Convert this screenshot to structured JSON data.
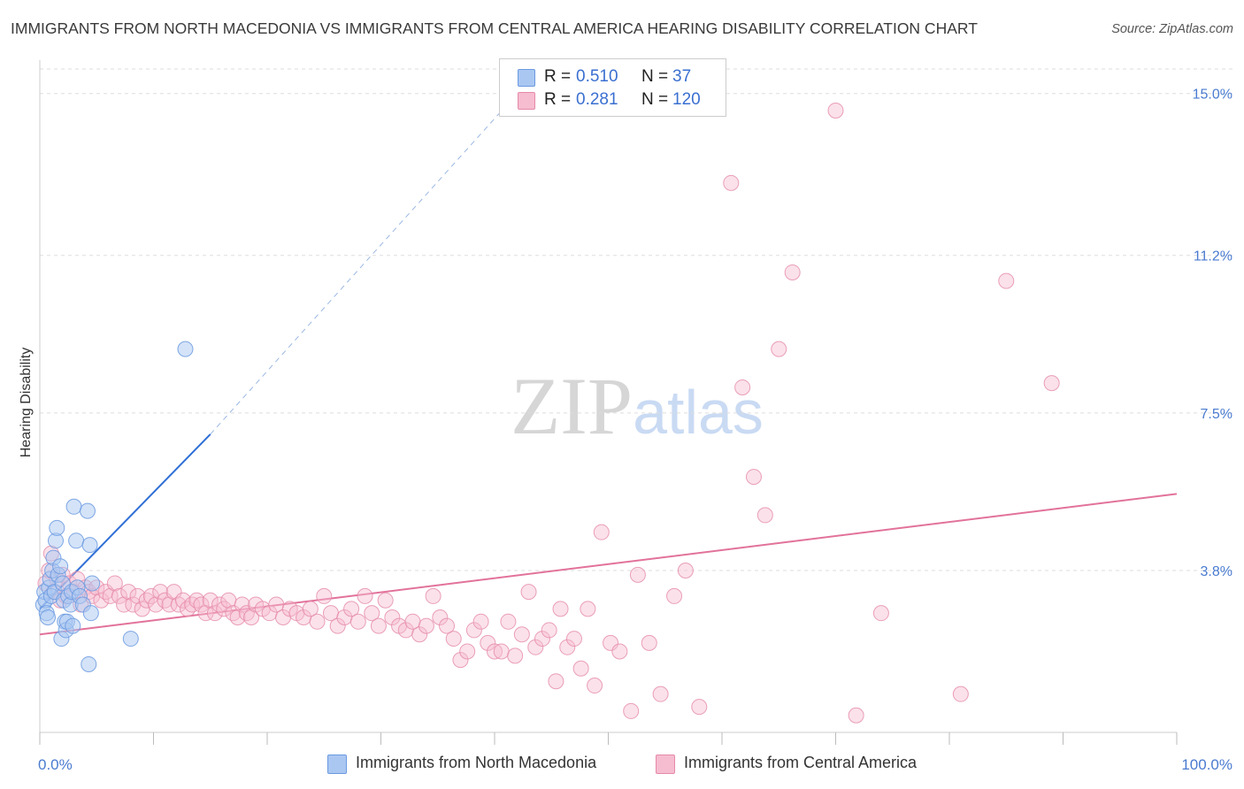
{
  "title": "IMMIGRANTS FROM NORTH MACEDONIA VS IMMIGRANTS FROM CENTRAL AMERICA HEARING DISABILITY CORRELATION CHART",
  "source": "Source: ZipAtlas.com",
  "watermark": "ZIPatlas",
  "colors": {
    "blue_fill": "#aac7f2",
    "blue_stroke": "#6b9ae0",
    "blue_line": "#2f6fd6",
    "pink_fill": "#f6bcd0",
    "pink_stroke": "#e58aa9",
    "pink_line": "#e2729a",
    "axis_text": "#4a7bd0",
    "grid": "#dddddd"
  },
  "legend": {
    "rows": [
      {
        "r_label": "R =",
        "r_value": "0.510",
        "n_label": "N =",
        "n_value": "37"
      },
      {
        "r_label": "R =",
        "r_value": "0.281",
        "n_label": "N =",
        "n_value": "120"
      }
    ]
  },
  "bottom_legend": {
    "series1": "Immigrants from North Macedonia",
    "series2": "Immigrants from Central America"
  },
  "chart_data": {
    "type": "scatter",
    "title": "IMMIGRANTS FROM NORTH MACEDONIA VS IMMIGRANTS FROM CENTRAL AMERICA HEARING DISABILITY CORRELATION CHART",
    "xlabel": "",
    "ylabel": "Hearing Disability",
    "xlim": [
      0,
      100
    ],
    "ylim": [
      0,
      15.7
    ],
    "x_tick_labels": [
      "0.0%",
      "100.0%"
    ],
    "y_ticks": [
      3.8,
      7.5,
      11.2,
      15.0
    ],
    "y_tick_labels": [
      "3.8%",
      "7.5%",
      "11.2%",
      "15.0%"
    ],
    "grid": true,
    "legend_position": "top-center",
    "series": [
      {
        "name": "Immigrants from North Macedonia",
        "R": 0.51,
        "N": 37,
        "trend": {
          "x0": 0,
          "y0": 2.9,
          "x1": 15,
          "y1": 7.0,
          "dashed_to_x": 43,
          "dashed_to_y": 15.3
        },
        "points": [
          [
            0.3,
            3.0
          ],
          [
            0.4,
            3.3
          ],
          [
            0.5,
            3.1
          ],
          [
            0.6,
            2.8
          ],
          [
            0.7,
            2.7
          ],
          [
            0.8,
            3.4
          ],
          [
            0.9,
            3.6
          ],
          [
            1.0,
            3.2
          ],
          [
            1.1,
            3.8
          ],
          [
            1.2,
            4.1
          ],
          [
            1.3,
            3.3
          ],
          [
            1.4,
            4.5
          ],
          [
            1.5,
            4.8
          ],
          [
            1.6,
            3.7
          ],
          [
            1.8,
            3.9
          ],
          [
            1.9,
            2.2
          ],
          [
            2.0,
            3.5
          ],
          [
            2.1,
            3.1
          ],
          [
            2.2,
            2.6
          ],
          [
            2.3,
            2.4
          ],
          [
            2.4,
            2.6
          ],
          [
            2.5,
            3.2
          ],
          [
            2.7,
            3.0
          ],
          [
            2.8,
            3.3
          ],
          [
            2.9,
            2.5
          ],
          [
            3.0,
            5.3
          ],
          [
            3.2,
            4.5
          ],
          [
            3.3,
            3.4
          ],
          [
            3.5,
            3.2
          ],
          [
            3.8,
            3.0
          ],
          [
            4.2,
            5.2
          ],
          [
            4.4,
            4.4
          ],
          [
            4.6,
            3.5
          ],
          [
            4.3,
            1.6
          ],
          [
            4.5,
            2.8
          ],
          [
            8.0,
            2.2
          ],
          [
            12.8,
            9.0
          ]
        ]
      },
      {
        "name": "Immigrants from Central America",
        "R": 0.281,
        "N": 120,
        "trend": {
          "x0": 0,
          "y0": 2.3,
          "x1": 100,
          "y1": 5.6
        },
        "points": [
          [
            0.5,
            3.5
          ],
          [
            0.8,
            3.8
          ],
          [
            1.0,
            4.2
          ],
          [
            1.2,
            3.3
          ],
          [
            1.5,
            3.6
          ],
          [
            1.8,
            3.1
          ],
          [
            2.0,
            3.7
          ],
          [
            2.3,
            3.2
          ],
          [
            2.6,
            3.5
          ],
          [
            3.0,
            3.3
          ],
          [
            3.3,
            3.6
          ],
          [
            3.6,
            3.0
          ],
          [
            4.0,
            3.4
          ],
          [
            4.3,
            3.3
          ],
          [
            4.6,
            3.2
          ],
          [
            5.0,
            3.4
          ],
          [
            5.4,
            3.1
          ],
          [
            5.8,
            3.3
          ],
          [
            6.2,
            3.2
          ],
          [
            6.6,
            3.5
          ],
          [
            7.0,
            3.2
          ],
          [
            7.4,
            3.0
          ],
          [
            7.8,
            3.3
          ],
          [
            8.2,
            3.0
          ],
          [
            8.6,
            3.2
          ],
          [
            9.0,
            2.9
          ],
          [
            9.4,
            3.1
          ],
          [
            9.8,
            3.2
          ],
          [
            10.2,
            3.0
          ],
          [
            10.6,
            3.3
          ],
          [
            11.0,
            3.1
          ],
          [
            11.4,
            3.0
          ],
          [
            11.8,
            3.3
          ],
          [
            12.2,
            3.0
          ],
          [
            12.6,
            3.1
          ],
          [
            13.0,
            2.9
          ],
          [
            13.4,
            3.0
          ],
          [
            13.8,
            3.1
          ],
          [
            14.2,
            3.0
          ],
          [
            14.6,
            2.8
          ],
          [
            15.0,
            3.1
          ],
          [
            15.4,
            2.8
          ],
          [
            15.8,
            3.0
          ],
          [
            16.2,
            2.9
          ],
          [
            16.6,
            3.1
          ],
          [
            17.0,
            2.8
          ],
          [
            17.4,
            2.7
          ],
          [
            17.8,
            3.0
          ],
          [
            18.2,
            2.8
          ],
          [
            18.6,
            2.7
          ],
          [
            19.0,
            3.0
          ],
          [
            19.6,
            2.9
          ],
          [
            20.2,
            2.8
          ],
          [
            20.8,
            3.0
          ],
          [
            21.4,
            2.7
          ],
          [
            22.0,
            2.9
          ],
          [
            22.6,
            2.8
          ],
          [
            23.2,
            2.7
          ],
          [
            23.8,
            2.9
          ],
          [
            24.4,
            2.6
          ],
          [
            25.0,
            3.2
          ],
          [
            25.6,
            2.8
          ],
          [
            26.2,
            2.5
          ],
          [
            26.8,
            2.7
          ],
          [
            27.4,
            2.9
          ],
          [
            28.0,
            2.6
          ],
          [
            28.6,
            3.2
          ],
          [
            29.2,
            2.8
          ],
          [
            29.8,
            2.5
          ],
          [
            30.4,
            3.1
          ],
          [
            31.0,
            2.7
          ],
          [
            31.6,
            2.5
          ],
          [
            32.2,
            2.4
          ],
          [
            32.8,
            2.6
          ],
          [
            33.4,
            2.3
          ],
          [
            34.0,
            2.5
          ],
          [
            34.6,
            3.2
          ],
          [
            35.2,
            2.7
          ],
          [
            35.8,
            2.5
          ],
          [
            36.4,
            2.2
          ],
          [
            37.0,
            1.7
          ],
          [
            37.6,
            1.9
          ],
          [
            38.2,
            2.4
          ],
          [
            38.8,
            2.6
          ],
          [
            39.4,
            2.1
          ],
          [
            40.0,
            1.9
          ],
          [
            40.6,
            1.9
          ],
          [
            41.2,
            2.6
          ],
          [
            41.8,
            1.8
          ],
          [
            42.4,
            2.3
          ],
          [
            43.0,
            3.3
          ],
          [
            43.6,
            2.0
          ],
          [
            44.2,
            2.2
          ],
          [
            44.8,
            2.4
          ],
          [
            45.4,
            1.2
          ],
          [
            45.8,
            2.9
          ],
          [
            46.4,
            2.0
          ],
          [
            47.0,
            2.2
          ],
          [
            47.6,
            1.5
          ],
          [
            48.2,
            2.9
          ],
          [
            48.8,
            1.1
          ],
          [
            49.4,
            4.7
          ],
          [
            50.2,
            2.1
          ],
          [
            51.0,
            1.9
          ],
          [
            52.0,
            0.5
          ],
          [
            52.6,
            3.7
          ],
          [
            53.6,
            2.1
          ],
          [
            54.6,
            0.9
          ],
          [
            55.8,
            3.2
          ],
          [
            56.8,
            3.8
          ],
          [
            58.0,
            0.6
          ],
          [
            60.8,
            12.9
          ],
          [
            61.8,
            8.1
          ],
          [
            62.8,
            6.0
          ],
          [
            63.8,
            5.1
          ],
          [
            65.0,
            9.0
          ],
          [
            66.2,
            10.8
          ],
          [
            70.0,
            14.6
          ],
          [
            71.8,
            0.4
          ],
          [
            74.0,
            2.8
          ],
          [
            81.0,
            0.9
          ],
          [
            85.0,
            10.6
          ],
          [
            89.0,
            8.2
          ]
        ]
      }
    ]
  }
}
